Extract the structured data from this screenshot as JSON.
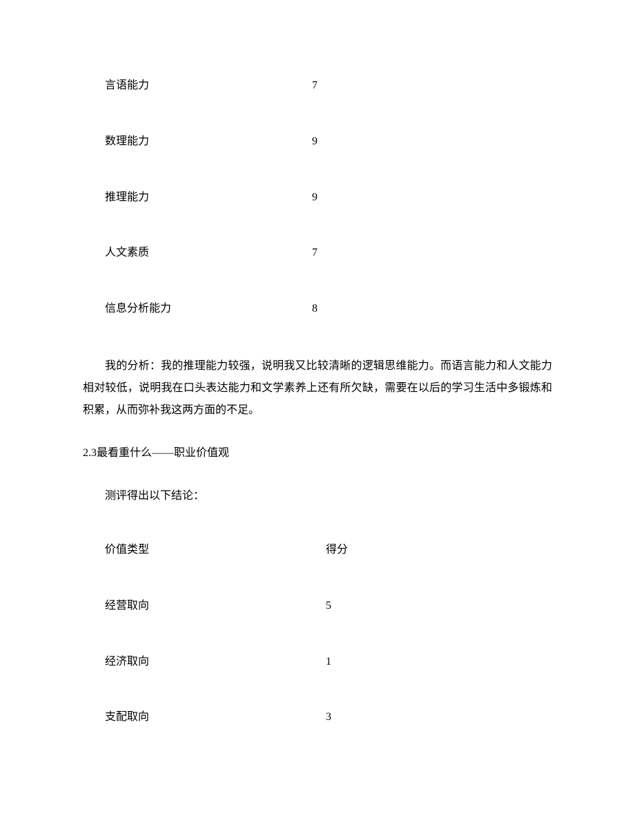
{
  "abilities": {
    "rows": [
      {
        "label": "言语能力",
        "value": "7"
      },
      {
        "label": "数理能力",
        "value": "9"
      },
      {
        "label": "推理能力",
        "value": "9"
      },
      {
        "label": "人文素质",
        "value": "7"
      },
      {
        "label": "信息分析能力",
        "value": "8"
      }
    ]
  },
  "analysis_paragraph": "我的分析：我的推理能力较强，说明我又比较清晰的逻辑思维能力。而语言能力和人文能力相对较低，说明我在口头表达能力和文学素养上还有所欠缺，需要在以后的学习生活中多锻炼和积累，从而弥补我这两方面的不足。",
  "section_heading": "2.3最看重什么——职业价值观",
  "sub_text": "测评得出以下结论：",
  "values_table": {
    "header": {
      "label": "价值类型",
      "score": "得分"
    },
    "rows": [
      {
        "label": "经营取向",
        "score": "5"
      },
      {
        "label": "经济取向",
        "score": "1"
      },
      {
        "label": "支配取向",
        "score": "3"
      }
    ]
  }
}
